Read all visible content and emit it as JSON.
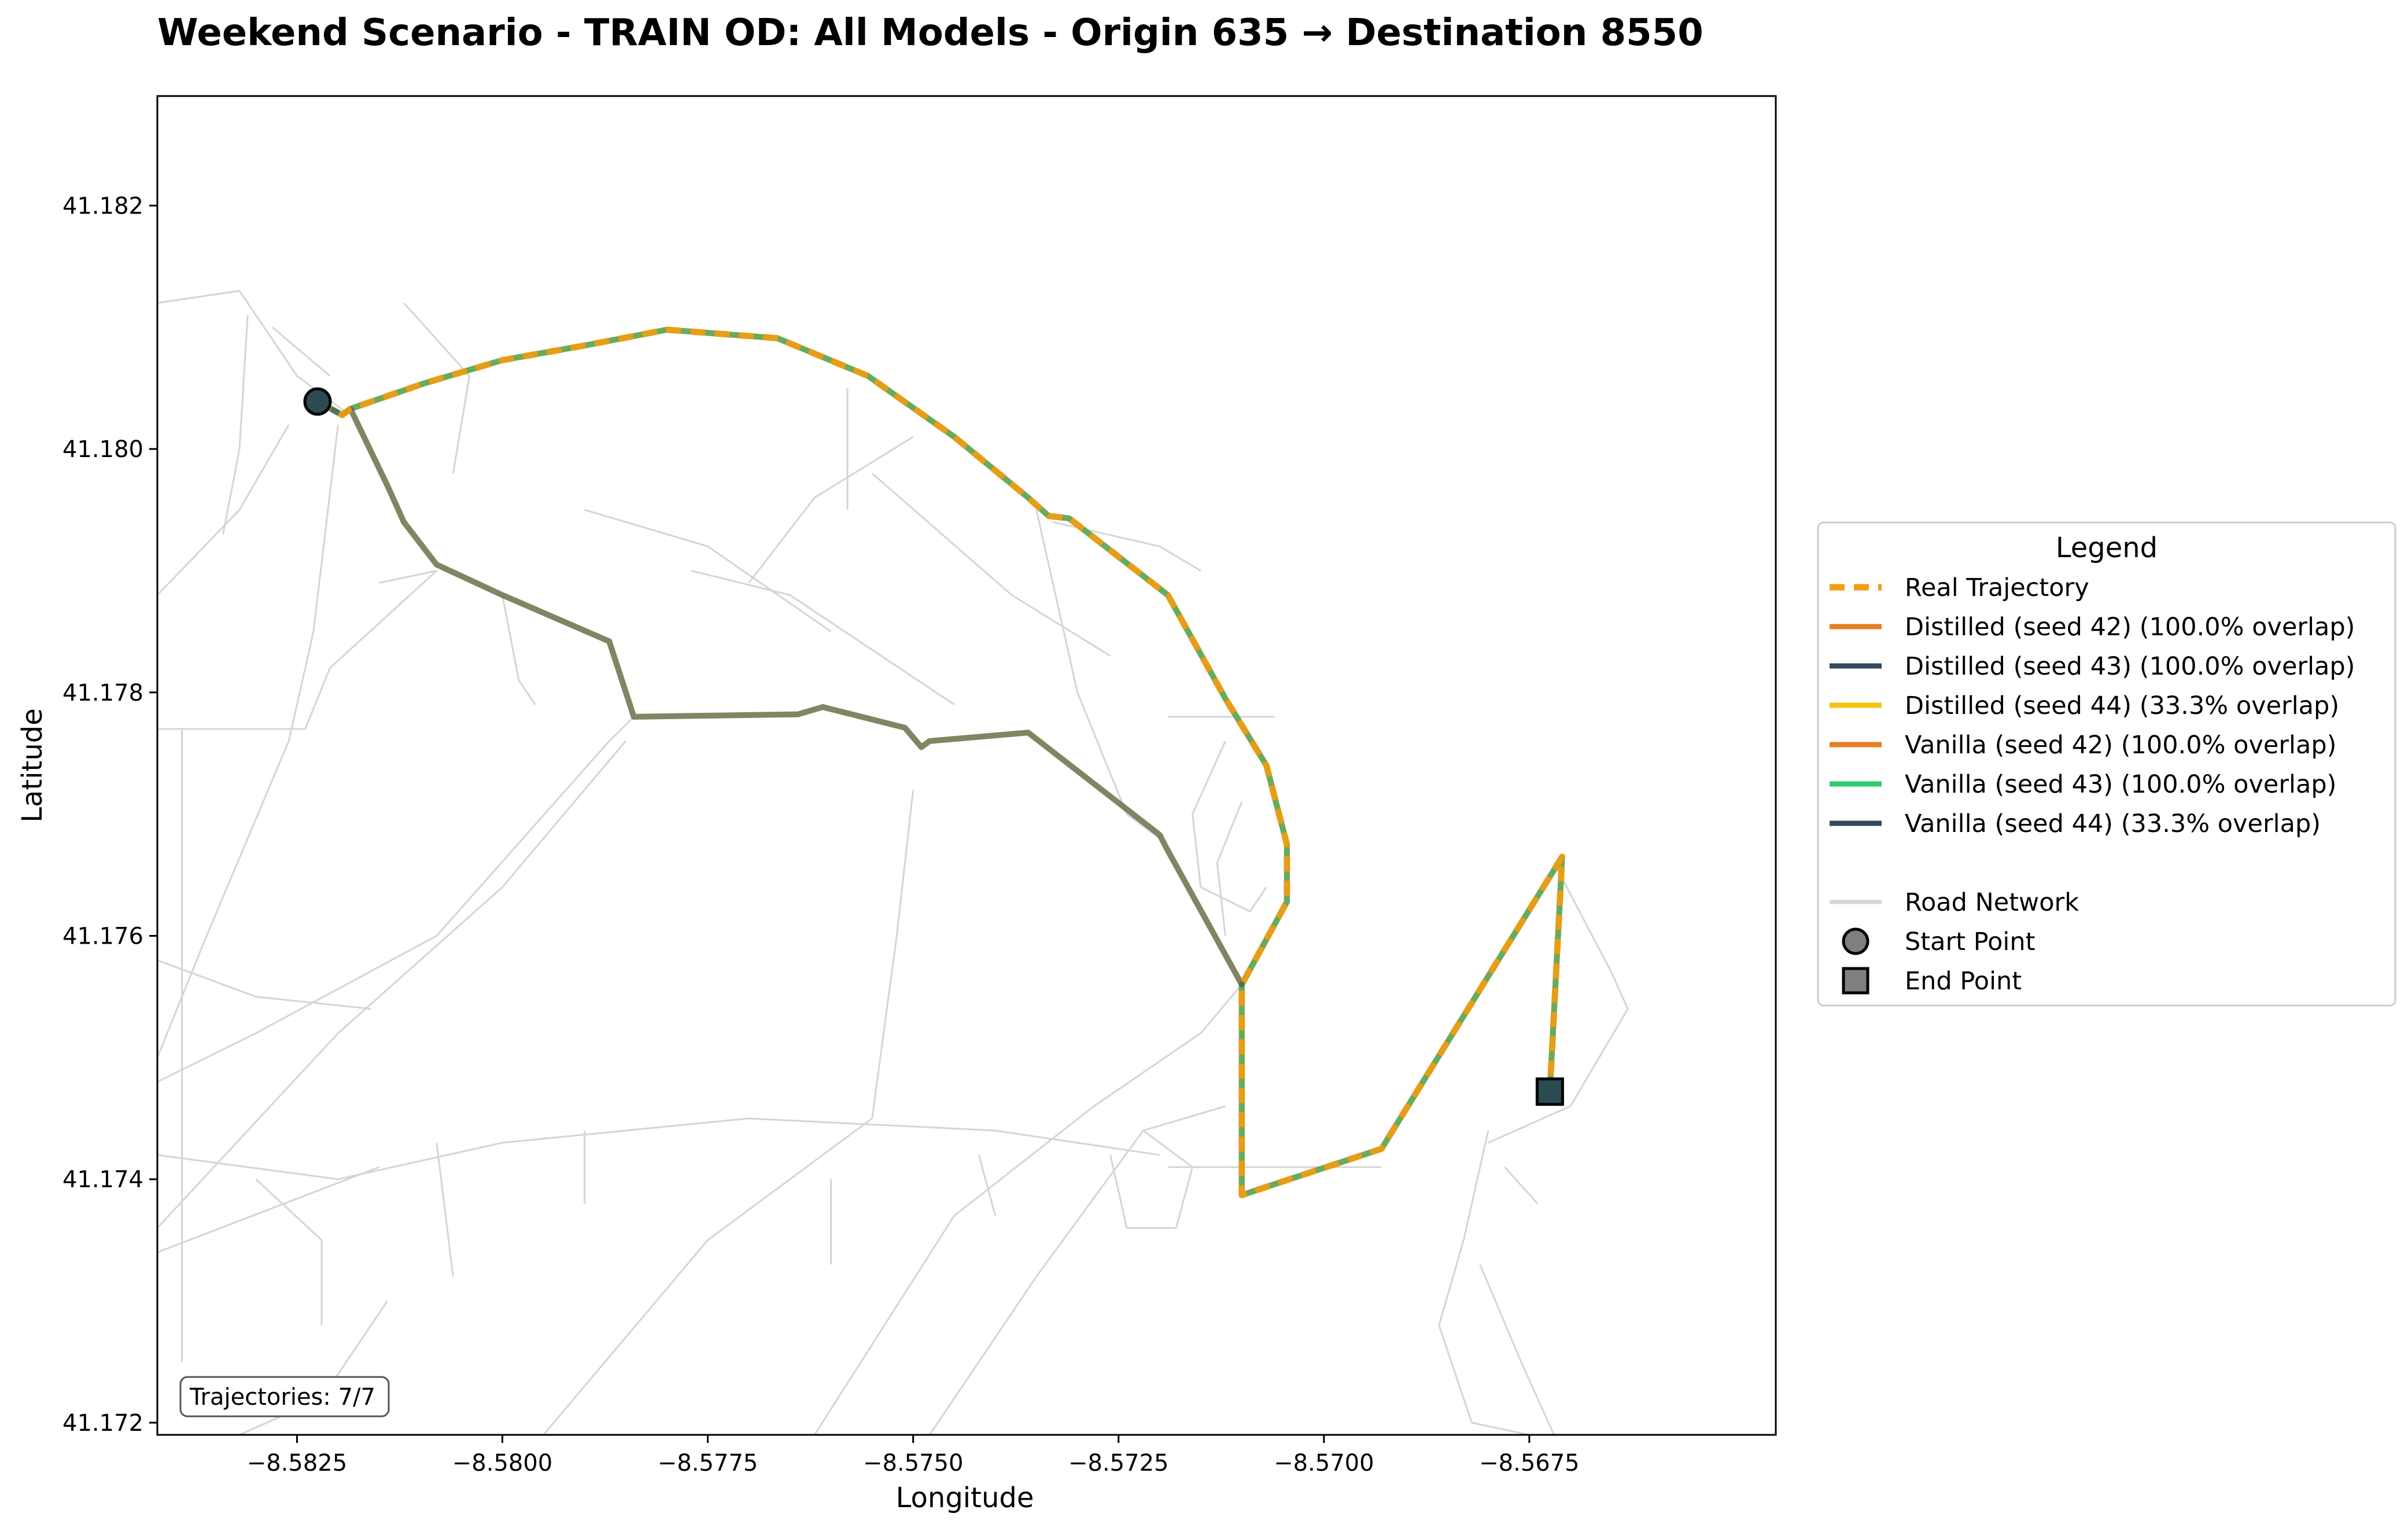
{
  "chart_data": {
    "type": "line",
    "title": "Weekend Scenario - TRAIN OD: All Models - Origin 635 → Destination 8550",
    "xlabel": "Longitude",
    "ylabel": "Latitude",
    "xlim": [
      -8.5842,
      -8.5645
    ],
    "ylim": [
      41.1719,
      41.1829
    ],
    "x_ticks": [
      -8.5825,
      -8.58,
      -8.5775,
      -8.575,
      -8.5725,
      -8.57,
      -8.5675
    ],
    "x_tick_labels": [
      "−8.5825",
      "−8.5800",
      "−8.5775",
      "−8.5750",
      "−8.5725",
      "−8.5700",
      "−8.5675"
    ],
    "y_ticks": [
      41.172,
      41.174,
      41.176,
      41.178,
      41.18,
      41.182
    ],
    "y_tick_labels": [
      "41.172",
      "41.174",
      "41.176",
      "41.178",
      "41.180",
      "41.182"
    ],
    "legend_title": "Legend",
    "legend_position": "right",
    "annotation": "Trajectories: 7/7",
    "route_a": [
      [
        -8.58225,
        41.18039
      ],
      [
        -8.58195,
        41.18028
      ],
      [
        -8.58185,
        41.18033
      ],
      [
        -8.58095,
        41.18054
      ],
      [
        -8.58,
        41.18073
      ],
      [
        -8.579,
        41.18085
      ],
      [
        -8.578,
        41.18098
      ],
      [
        -8.57665,
        41.18091
      ],
      [
        -8.57555,
        41.1806
      ],
      [
        -8.5745,
        41.1801
      ],
      [
        -8.5736,
        41.1796
      ],
      [
        -8.57335,
        41.17945
      ],
      [
        -8.5731,
        41.17943
      ],
      [
        -8.5719,
        41.1788
      ],
      [
        -8.5712,
        41.17795
      ],
      [
        -8.5707,
        41.1774
      ],
      [
        -8.57045,
        41.17675
      ],
      [
        -8.57045,
        41.17628
      ],
      [
        -8.571,
        41.1756
      ],
      [
        -8.571,
        41.17387
      ],
      [
        -8.5693,
        41.17425
      ],
      [
        -8.5671,
        41.17665
      ],
      [
        -8.56725,
        41.17472
      ]
    ],
    "route_b": [
      [
        -8.58225,
        41.18039
      ],
      [
        -8.58195,
        41.18028
      ],
      [
        -8.58185,
        41.18033
      ],
      [
        -8.5814,
        41.1797
      ],
      [
        -8.5812,
        41.1794
      ],
      [
        -8.5808,
        41.17905
      ],
      [
        -8.58,
        41.1788
      ],
      [
        -8.5787,
        41.17842
      ],
      [
        -8.5784,
        41.1778
      ],
      [
        -8.5764,
        41.17782
      ],
      [
        -8.5761,
        41.17788
      ],
      [
        -8.5751,
        41.17771
      ],
      [
        -8.5749,
        41.17755
      ],
      [
        -8.5748,
        41.1776
      ],
      [
        -8.5736,
        41.17767
      ],
      [
        -8.572,
        41.17683
      ],
      [
        -8.5719,
        41.1767
      ],
      [
        -8.571,
        41.1756
      ]
    ],
    "series": [
      {
        "name": "Real Trajectory",
        "color": "#f39c12",
        "style": "dashed",
        "route": "route_a"
      },
      {
        "name": "Distilled (seed 42) (100.0% overlap)",
        "color": "#e67e22",
        "style": "solid",
        "route": "route_a"
      },
      {
        "name": "Distilled (seed 43) (100.0% overlap)",
        "color": "#34495e",
        "style": "solid",
        "route": "route_a"
      },
      {
        "name": "Distilled (seed 44) (33.3% overlap)",
        "color": "#f1c40f",
        "style": "solid",
        "route": "route_b"
      },
      {
        "name": "Vanilla (seed 42) (100.0% overlap)",
        "color": "#e67e22",
        "style": "solid",
        "route": "route_a"
      },
      {
        "name": "Vanilla (seed 43) (100.0% overlap)",
        "color": "#2ecc71",
        "style": "solid",
        "route": "route_a"
      },
      {
        "name": "Vanilla (seed 44) (33.3% overlap)",
        "color": "#34495e",
        "style": "solid",
        "route": "route_b"
      }
    ],
    "extra_legend": [
      {
        "name": "Road Network",
        "kind": "line",
        "color": "#d5d5d5"
      },
      {
        "name": "Start Point",
        "kind": "circle",
        "color": "#7f7f7f"
      },
      {
        "name": "End Point",
        "kind": "square",
        "color": "#7f7f7f"
      }
    ],
    "start_point": [
      -8.58225,
      41.18039
    ],
    "end_point": [
      -8.56725,
      41.17472
    ],
    "marker_color": "#2c4a52",
    "road_network": [
      [
        [
          -8.5842,
          41.1812
        ],
        [
          -8.5832,
          41.1813
        ],
        [
          -8.5825,
          41.1806
        ],
        [
          -8.5819,
          41.1803
        ]
      ],
      [
        [
          -8.5831,
          41.1811
        ],
        [
          -8.5832,
          41.18
        ],
        [
          -8.5834,
          41.1793
        ]
      ],
      [
        [
          -8.5828,
          41.181
        ],
        [
          -8.5821,
          41.1806
        ]
      ],
      [
        [
          -8.5842,
          41.1788
        ],
        [
          -8.5832,
          41.1795
        ],
        [
          -8.5826,
          41.1802
        ]
      ],
      [
        [
          -8.582,
          41.1802
        ],
        [
          -8.5823,
          41.1785
        ],
        [
          -8.5826,
          41.1776
        ],
        [
          -8.5836,
          41.176
        ],
        [
          -8.5842,
          41.175
        ]
      ],
      [
        [
          -8.5842,
          41.1777
        ],
        [
          -8.5824,
          41.1777
        ]
      ],
      [
        [
          -8.5839,
          41.1777
        ],
        [
          -8.5839,
          41.1725
        ]
      ],
      [
        [
          -8.5824,
          41.1777
        ],
        [
          -8.5821,
          41.1782
        ],
        [
          -8.5808,
          41.179
        ]
      ],
      [
        [
          -8.5815,
          41.1789
        ],
        [
          -8.5808,
          41.179
        ]
      ],
      [
        [
          -8.5806,
          41.1798
        ],
        [
          -8.5804,
          41.1806
        ],
        [
          -8.5812,
          41.1812
        ]
      ],
      [
        [
          -8.58,
          41.1788
        ],
        [
          -8.5798,
          41.1781
        ],
        [
          -8.5796,
          41.1779
        ]
      ],
      [
        [
          -8.5842,
          41.1748
        ],
        [
          -8.583,
          41.1752
        ],
        [
          -8.5808,
          41.176
        ],
        [
          -8.5787,
          41.1776
        ],
        [
          -8.5784,
          41.1778
        ]
      ],
      [
        [
          -8.5842,
          41.1736
        ],
        [
          -8.582,
          41.1752
        ],
        [
          -8.58,
          41.1764
        ],
        [
          -8.5785,
          41.1776
        ]
      ],
      [
        [
          -8.5842,
          41.1758
        ],
        [
          -8.583,
          41.1755
        ],
        [
          -8.5816,
          41.1754
        ]
      ],
      [
        [
          -8.5842,
          41.1742
        ],
        [
          -8.582,
          41.174
        ],
        [
          -8.58,
          41.1743
        ],
        [
          -8.577,
          41.1745
        ],
        [
          -8.574,
          41.1744
        ],
        [
          -8.572,
          41.1742
        ]
      ],
      [
        [
          -8.5842,
          41.1734
        ],
        [
          -8.5815,
          41.1741
        ]
      ],
      [
        [
          -8.583,
          41.174
        ],
        [
          -8.5822,
          41.1735
        ],
        [
          -8.5822,
          41.1728
        ]
      ],
      [
        [
          -8.5808,
          41.1743
        ],
        [
          -8.5806,
          41.1732
        ]
      ],
      [
        [
          -8.579,
          41.1744
        ],
        [
          -8.579,
          41.1738
        ]
      ],
      [
        [
          -8.5814,
          41.173
        ],
        [
          -8.5822,
          41.1722
        ],
        [
          -8.5832,
          41.1719
        ]
      ],
      [
        [
          -8.5795,
          41.1719
        ],
        [
          -8.5775,
          41.1735
        ],
        [
          -8.5755,
          41.1745
        ],
        [
          -8.5752,
          41.176
        ],
        [
          -8.575,
          41.1772
        ]
      ],
      [
        [
          -8.5762,
          41.1719
        ],
        [
          -8.5745,
          41.1737
        ],
        [
          -8.5728,
          41.1746
        ],
        [
          -8.5715,
          41.1752
        ],
        [
          -8.571,
          41.1756
        ]
      ],
      [
        [
          -8.5748,
          41.1719
        ],
        [
          -8.5735,
          41.1732
        ],
        [
          -8.5722,
          41.1744
        ],
        [
          -8.5712,
          41.1746
        ]
      ],
      [
        [
          -8.576,
          41.1785
        ],
        [
          -8.5775,
          41.1792
        ],
        [
          -8.579,
          41.1795
        ]
      ],
      [
        [
          -8.5745,
          41.1779
        ],
        [
          -8.5765,
          41.1788
        ],
        [
          -8.5777,
          41.179
        ]
      ],
      [
        [
          -8.5755,
          41.1798
        ],
        [
          -8.5738,
          41.1788
        ],
        [
          -8.5726,
          41.1783
        ]
      ],
      [
        [
          -8.5758,
          41.1795
        ],
        [
          -8.5758,
          41.1805
        ]
      ],
      [
        [
          -8.575,
          41.1801
        ],
        [
          -8.5762,
          41.1796
        ],
        [
          -8.577,
          41.1789
        ]
      ],
      [
        [
          -8.5735,
          41.1795
        ],
        [
          -8.573,
          41.178
        ],
        [
          -8.5724,
          41.177
        ],
        [
          -8.572,
          41.1768
        ]
      ],
      [
        [
          -8.571,
          41.1771
        ],
        [
          -8.5713,
          41.1766
        ],
        [
          -8.5712,
          41.176
        ]
      ],
      [
        [
          -8.5712,
          41.1776
        ],
        [
          -8.5716,
          41.177
        ],
        [
          -8.5715,
          41.1764
        ],
        [
          -8.5709,
          41.1762
        ],
        [
          -8.5707,
          41.1764
        ]
      ],
      [
        [
          -8.5719,
          41.1778
        ],
        [
          -8.5706,
          41.1778
        ]
      ],
      [
        [
          -8.5733,
          41.1794
        ],
        [
          -8.572,
          41.1792
        ],
        [
          -8.5715,
          41.179
        ]
      ],
      [
        [
          -8.5719,
          41.1741
        ],
        [
          -8.571,
          41.1741
        ],
        [
          -8.57,
          41.1741
        ]
      ],
      [
        [
          -8.5742,
          41.1742
        ],
        [
          -8.574,
          41.1737
        ]
      ],
      [
        [
          -8.576,
          41.174
        ],
        [
          -8.576,
          41.1733
        ]
      ],
      [
        [
          -8.5722,
          41.1744
        ],
        [
          -8.5716,
          41.1741
        ],
        [
          -8.5718,
          41.1736
        ],
        [
          -8.5724,
          41.1736
        ],
        [
          -8.5726,
          41.1742
        ]
      ],
      [
        [
          -8.5672,
          41.1766
        ],
        [
          -8.5665,
          41.1757
        ],
        [
          -8.5663,
          41.1754
        ],
        [
          -8.567,
          41.1746
        ],
        [
          -8.568,
          41.1743
        ]
      ],
      [
        [
          -8.568,
          41.1744
        ],
        [
          -8.5683,
          41.1735
        ],
        [
          -8.5686,
          41.1728
        ],
        [
          -8.5682,
          41.172
        ],
        [
          -8.5675,
          41.1719
        ]
      ],
      [
        [
          -8.5681,
          41.1733
        ],
        [
          -8.5676,
          41.1725
        ],
        [
          -8.5672,
          41.1719
        ]
      ],
      [
        [
          -8.5678,
          41.1741
        ],
        [
          -8.5674,
          41.1738
        ]
      ],
      [
        [
          -8.5693,
          41.1741
        ],
        [
          -8.57,
          41.1741
        ]
      ]
    ]
  }
}
